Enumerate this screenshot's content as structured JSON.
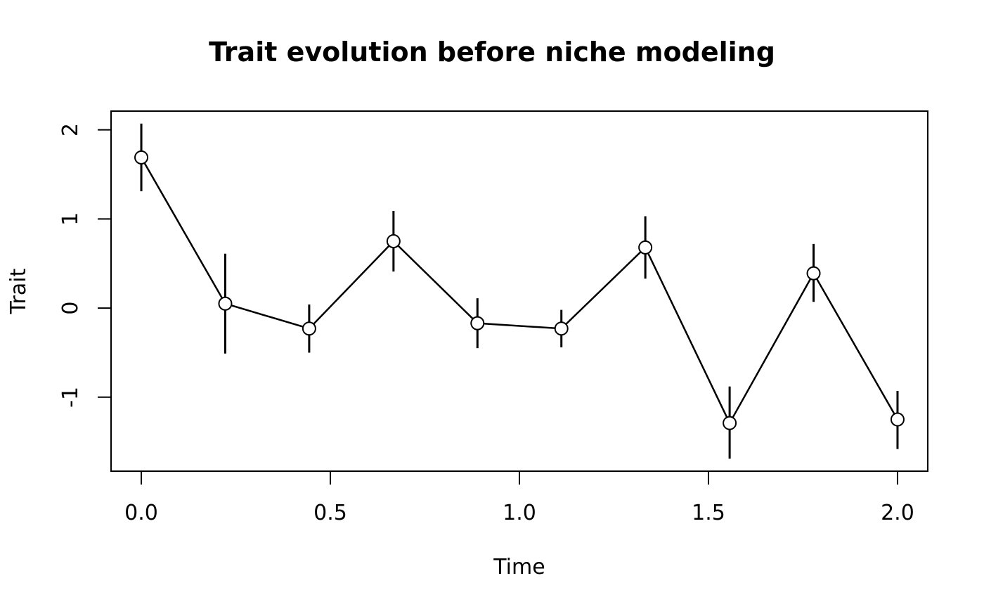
{
  "chart_data": {
    "type": "line",
    "title": "Trait evolution before niche modeling",
    "xlabel": "Time",
    "ylabel": "Trait",
    "xlim": [
      -0.08,
      2.08
    ],
    "ylim": [
      -1.83,
      2.21
    ],
    "xticks": [
      0.0,
      0.5,
      1.0,
      1.5,
      2.0
    ],
    "xtick_labels": [
      "0.0",
      "0.5",
      "1.0",
      "1.5",
      "2.0"
    ],
    "yticks": [
      -1,
      0,
      1,
      2
    ],
    "ytick_labels": [
      "-1",
      "0",
      "1",
      "2"
    ],
    "grid": false,
    "legend": "none",
    "series": [
      {
        "x": [
          0.0,
          0.222,
          0.444,
          0.667,
          0.889,
          1.111,
          1.333,
          1.556,
          1.778,
          2.0
        ],
        "y": [
          1.69,
          0.05,
          -0.23,
          0.75,
          -0.17,
          -0.23,
          0.68,
          -1.29,
          0.39,
          -1.25
        ],
        "error_low": [
          1.31,
          -0.51,
          -0.5,
          0.41,
          -0.45,
          -0.44,
          0.33,
          -1.69,
          0.07,
          -1.58
        ],
        "error_high": [
          2.07,
          0.61,
          0.04,
          1.09,
          0.11,
          -0.02,
          1.03,
          -0.88,
          0.72,
          -0.93
        ]
      }
    ],
    "colors": {
      "line": "#000000",
      "marker_fill": "#ffffff",
      "marker_stroke": "#000000"
    }
  }
}
